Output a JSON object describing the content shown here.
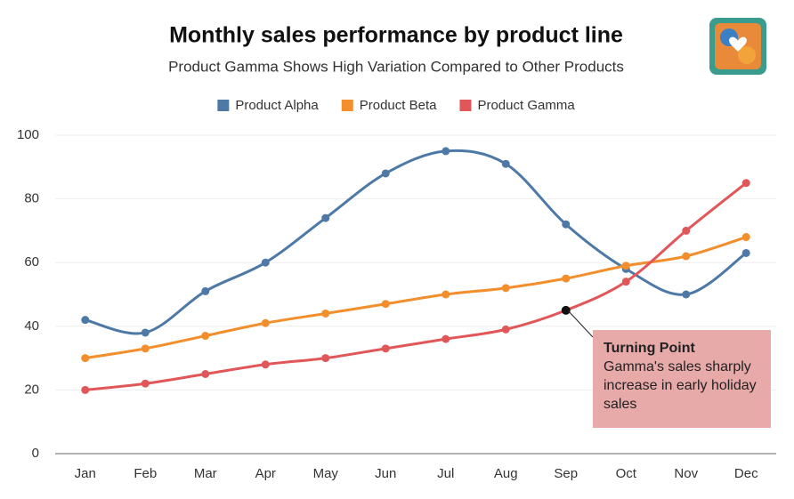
{
  "chart_data": {
    "type": "line",
    "title": "Monthly sales performance by product line",
    "subtitle": "Product Gamma Shows High Variation Compared to Other Products",
    "categories": [
      "Jan",
      "Feb",
      "Mar",
      "Apr",
      "May",
      "Jun",
      "Jul",
      "Aug",
      "Sep",
      "Oct",
      "Nov",
      "Dec"
    ],
    "series": [
      {
        "name": "Product Alpha",
        "color": "#4e79a7",
        "values": [
          42,
          38,
          51,
          60,
          74,
          88,
          95,
          91,
          72,
          58,
          50,
          63
        ]
      },
      {
        "name": "Product Beta",
        "color": "#f28e2b",
        "values": [
          30,
          33,
          37,
          41,
          44,
          47,
          50,
          52,
          55,
          59,
          62,
          68
        ]
      },
      {
        "name": "Product Gamma",
        "color": "#e15759",
        "values": [
          20,
          22,
          25,
          28,
          30,
          33,
          36,
          39,
          45,
          54,
          70,
          85
        ]
      }
    ],
    "ylim": [
      0,
      100
    ],
    "yticks": [
      0,
      20,
      40,
      60,
      80,
      100
    ],
    "grid": true,
    "legend": "top",
    "annotation": {
      "label": "Turning Point",
      "text": "Gamma's sales sharply increase in early holiday sales",
      "category": "Sep",
      "value": 45
    }
  }
}
